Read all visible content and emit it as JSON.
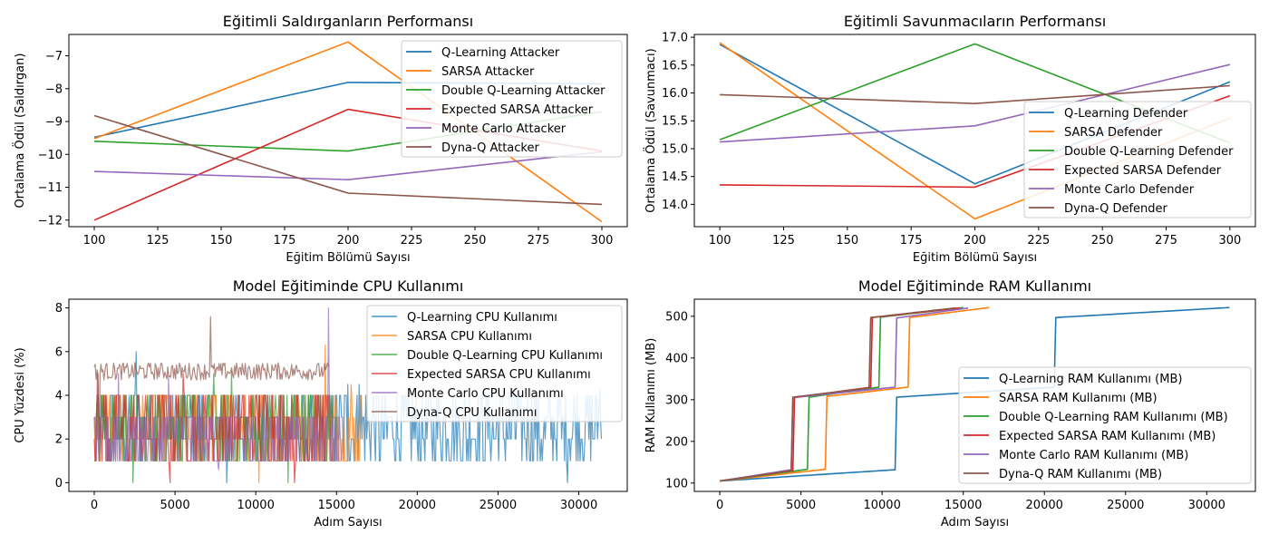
{
  "colors": [
    "#1f77b4",
    "#ff7f0e",
    "#2ca02c",
    "#d62728",
    "#9467bd",
    "#8c564b"
  ],
  "chart_data": [
    {
      "type": "line",
      "title": "Eğitimli Saldırganların Performansı",
      "xlabel": "Eğitim Bölümü Sayısı",
      "ylabel": "Ortalama Ödül (Saldırgan)",
      "xlim": [
        90,
        310
      ],
      "ylim": [
        -12.2,
        -6.35
      ],
      "xticks": [
        100,
        125,
        150,
        175,
        200,
        225,
        250,
        275,
        300
      ],
      "yticks": [
        -12,
        -11,
        -10,
        -9,
        -8,
        -7
      ],
      "legend_position": "top-right",
      "grid": false,
      "x": [
        100,
        200,
        300
      ],
      "series": [
        {
          "name": "Q-Learning Attacker",
          "values": [
            -9.48,
            -7.81,
            -7.85
          ]
        },
        {
          "name": "SARSA Attacker",
          "values": [
            -9.52,
            -6.58,
            -12.05
          ]
        },
        {
          "name": "Double Q-Learning Attacker",
          "values": [
            -9.6,
            -9.9,
            -8.7
          ]
        },
        {
          "name": "Expected SARSA Attacker",
          "values": [
            -12.0,
            -8.63,
            -9.9
          ]
        },
        {
          "name": "Monte Carlo Attacker",
          "values": [
            -10.52,
            -10.77,
            -9.92
          ]
        },
        {
          "name": "Dyna-Q Attacker",
          "values": [
            -8.82,
            -11.18,
            -11.52
          ]
        }
      ]
    },
    {
      "type": "line",
      "title": "Eğitimli Savunmacıların Performansı",
      "xlabel": "Eğitim Bölümü Sayısı",
      "ylabel": "Ortalama Ödül (Savunmacı)",
      "xlim": [
        90,
        310
      ],
      "ylim": [
        13.6,
        17.05
      ],
      "xticks": [
        100,
        125,
        150,
        175,
        200,
        225,
        250,
        275,
        300
      ],
      "yticks": [
        14.0,
        14.5,
        15.0,
        15.5,
        16.0,
        16.5,
        17.0
      ],
      "ytick_labels": [
        "14.0",
        "14.5",
        "15.0",
        "15.5",
        "16.0",
        "16.5",
        "17.0"
      ],
      "legend_position": "center-right",
      "grid": false,
      "x": [
        100,
        200,
        300
      ],
      "series": [
        {
          "name": "Q-Learning Defender",
          "values": [
            16.87,
            14.37,
            16.2
          ]
        },
        {
          "name": "SARSA Defender",
          "values": [
            16.9,
            13.74,
            15.55
          ]
        },
        {
          "name": "Double Q-Learning Defender",
          "values": [
            15.16,
            16.88,
            15.1
          ]
        },
        {
          "name": "Expected SARSA Defender",
          "values": [
            14.35,
            14.31,
            15.95
          ]
        },
        {
          "name": "Monte Carlo Defender",
          "values": [
            15.12,
            15.41,
            16.51
          ]
        },
        {
          "name": "Dyna-Q Defender",
          "values": [
            15.97,
            15.81,
            16.13
          ]
        }
      ]
    },
    {
      "type": "line",
      "title": "Model Eğitiminde CPU Kullanımı",
      "xlabel": "Adım Sayısı",
      "ylabel": "CPU Yüzdesi (%)",
      "xlim": [
        -1570,
        33000
      ],
      "ylim": [
        -0.4,
        8.4
      ],
      "xticks": [
        0,
        5000,
        10000,
        15000,
        20000,
        25000,
        30000
      ],
      "yticks": [
        0,
        2,
        4,
        6,
        8
      ],
      "legend_position": "top-right",
      "grid": false,
      "series": [
        {
          "name": "Q-Learning CPU Kullanımı",
          "length": 31400,
          "low": 1,
          "high": 4,
          "peaks": [
            [
              2600,
              6.0
            ],
            [
              15700,
              4.5
            ],
            [
              16400,
              4.5
            ],
            [
              26000,
              4.3
            ],
            [
              31300,
              4.3
            ]
          ],
          "dips": [
            [
              8200,
              0
            ],
            [
              29300,
              0
            ]
          ]
        },
        {
          "name": "SARSA CPU Kullanımı",
          "length": 16600,
          "low": 1,
          "high": 4,
          "peaks": [
            [
              14300,
              6.3
            ],
            [
              15900,
              4.5
            ]
          ],
          "dips": [
            [
              10200,
              0
            ]
          ]
        },
        {
          "name": "Double Q-Learning CPU Kullanımı",
          "length": 15000,
          "low": 1,
          "high": 4,
          "peaks": [
            [
              7400,
              5.0
            ],
            [
              8500,
              5.1
            ]
          ],
          "dips": [
            [
              2400,
              0
            ],
            [
              12000,
              0
            ]
          ]
        },
        {
          "name": "Expected SARSA CPU Kullanımı",
          "length": 14800,
          "low": 1,
          "high": 4,
          "peaks": [
            [
              200,
              5.0
            ],
            [
              5500,
              5.0
            ]
          ],
          "dips": [
            [
              4700,
              0
            ],
            [
              12400,
              0
            ]
          ]
        },
        {
          "name": "Monte Carlo CPU Kullanımı",
          "length": 15300,
          "low": 1,
          "high": 3,
          "peaks": [
            [
              14500,
              8.0
            ],
            [
              1500,
              5.0
            ],
            [
              4600,
              4.9
            ]
          ],
          "dips": [
            [
              7700,
              0.6
            ]
          ]
        },
        {
          "name": "Dyna-Q CPU Kullanımı",
          "length": 14500,
          "low": 4.7,
          "high": 5.5,
          "peaks": [
            [
              7200,
              7.6
            ],
            [
              11000,
              5.4
            ]
          ],
          "dips": [
            [
              300,
              2.0
            ]
          ]
        }
      ]
    },
    {
      "type": "line",
      "title": "Model Eğitiminde RAM Kullanımı",
      "xlabel": "Adım Sayısı",
      "ylabel": "RAM Kullanımı (MB)",
      "xlim": [
        -1570,
        33000
      ],
      "ylim": [
        80,
        541
      ],
      "xticks": [
        0,
        5000,
        10000,
        15000,
        20000,
        25000,
        30000
      ],
      "yticks": [
        100,
        200,
        300,
        400,
        500
      ],
      "legend_position": "lower-right",
      "grid": false,
      "series": [
        {
          "name": "Q-Learning RAM Kullanımı (MB)",
          "points": [
            [
              0,
              105
            ],
            [
              10800,
              132
            ],
            [
              10900,
              306
            ],
            [
              20600,
              330
            ],
            [
              20700,
              497
            ],
            [
              31400,
              521
            ]
          ]
        },
        {
          "name": "SARSA RAM Kullanımı (MB)",
          "points": [
            [
              0,
              105
            ],
            [
              6500,
              133
            ],
            [
              6600,
              308
            ],
            [
              11600,
              330
            ],
            [
              11700,
              497
            ],
            [
              16600,
              521
            ]
          ]
        },
        {
          "name": "Double Q-Learning RAM Kullanımı (MB)",
          "points": [
            [
              0,
              105
            ],
            [
              5400,
              133
            ],
            [
              5500,
              306
            ],
            [
              9800,
              330
            ],
            [
              9900,
              498
            ],
            [
              15000,
              521
            ]
          ]
        },
        {
          "name": "Expected SARSA RAM Kullanımı (MB)",
          "points": [
            [
              0,
              105
            ],
            [
              4500,
              130
            ],
            [
              4600,
              305
            ],
            [
              9300,
              330
            ],
            [
              9400,
              497
            ],
            [
              14800,
              520
            ]
          ]
        },
        {
          "name": "Monte Carlo RAM Kullanımı (MB)",
          "points": [
            [
              0,
              105
            ],
            [
              4400,
              132
            ],
            [
              4500,
              305
            ],
            [
              10800,
              330
            ],
            [
              10900,
              496
            ],
            [
              15300,
              520
            ]
          ]
        },
        {
          "name": "Dyna-Q RAM Kullanımı (MB)",
          "points": [
            [
              0,
              105
            ],
            [
              4400,
              130
            ],
            [
              4500,
              306
            ],
            [
              9200,
              328
            ],
            [
              9300,
              497
            ],
            [
              14500,
              520
            ]
          ]
        }
      ]
    }
  ]
}
